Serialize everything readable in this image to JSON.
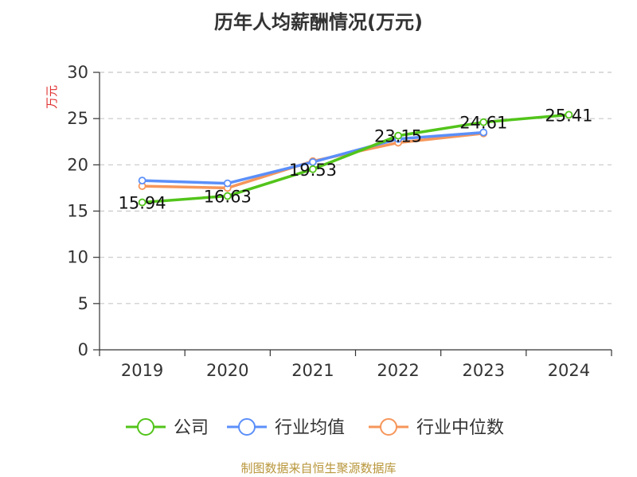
{
  "title": "历年人均薪酬情况(万元)",
  "source": "制图数据来自恒生聚源数据库",
  "chart_data": {
    "type": "line",
    "title": "历年人均薪酬情况(万元)",
    "ylabel": "万元",
    "xlabel": "",
    "ylim": [
      0,
      30
    ],
    "yticks": [
      0,
      5,
      10,
      15,
      20,
      25,
      30
    ],
    "categories": [
      "2019",
      "2020",
      "2021",
      "2022",
      "2023",
      "2024"
    ],
    "grid": "horizontal-dashed",
    "legend": "bottom",
    "series": [
      {
        "name": "公司",
        "color": "#52c41a",
        "values": [
          15.94,
          16.63,
          19.53,
          23.15,
          24.61,
          25.41
        ],
        "labels": [
          "15.94",
          "16.63",
          "19.53",
          "23.15",
          "24.61",
          "25.41"
        ]
      },
      {
        "name": "行业均值",
        "color": "#5b8ff9",
        "values": [
          18.3,
          18.0,
          20.3,
          22.8,
          23.5,
          null
        ]
      },
      {
        "name": "行业中位数",
        "color": "#f6965a",
        "values": [
          17.7,
          17.5,
          20.4,
          22.4,
          23.4,
          null
        ]
      }
    ]
  }
}
